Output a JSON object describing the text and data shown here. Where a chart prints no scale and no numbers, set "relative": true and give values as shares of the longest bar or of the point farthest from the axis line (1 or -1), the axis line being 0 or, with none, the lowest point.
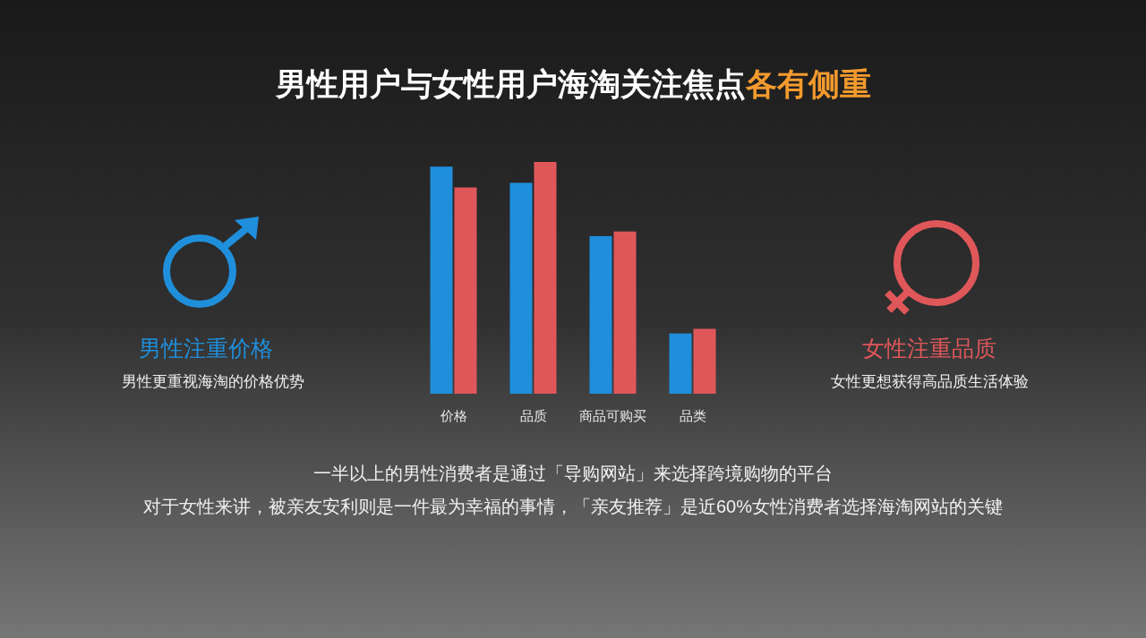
{
  "chart_data": {
    "type": "bar",
    "title": "男性用户与女性用户海淘关注焦点各有侧重",
    "relative": true,
    "categories": [
      "价格",
      "品质",
      "商品可购买",
      "品类"
    ],
    "series": [
      {
        "color": "#1f8fdc",
        "values": [
          0.98,
          0.91,
          0.68,
          0.26
        ]
      },
      {
        "color": "#e0575a",
        "values": [
          0.89,
          1.0,
          0.7,
          0.28
        ]
      }
    ],
    "annotations": [
      "男性注重价格",
      "男性更重视海淘的价格优势",
      "女性注重品质",
      "女性更想获得高品质生活体验",
      "一半以上的男性消费者是通过「导购网站」来选择跨境购物的平台",
      "对于女性来讲，被亲友安利则是一件最为幸福的事情，「亲友推荐」是近60%女性消费者选择海淘网站的关键"
    ]
  }
}
